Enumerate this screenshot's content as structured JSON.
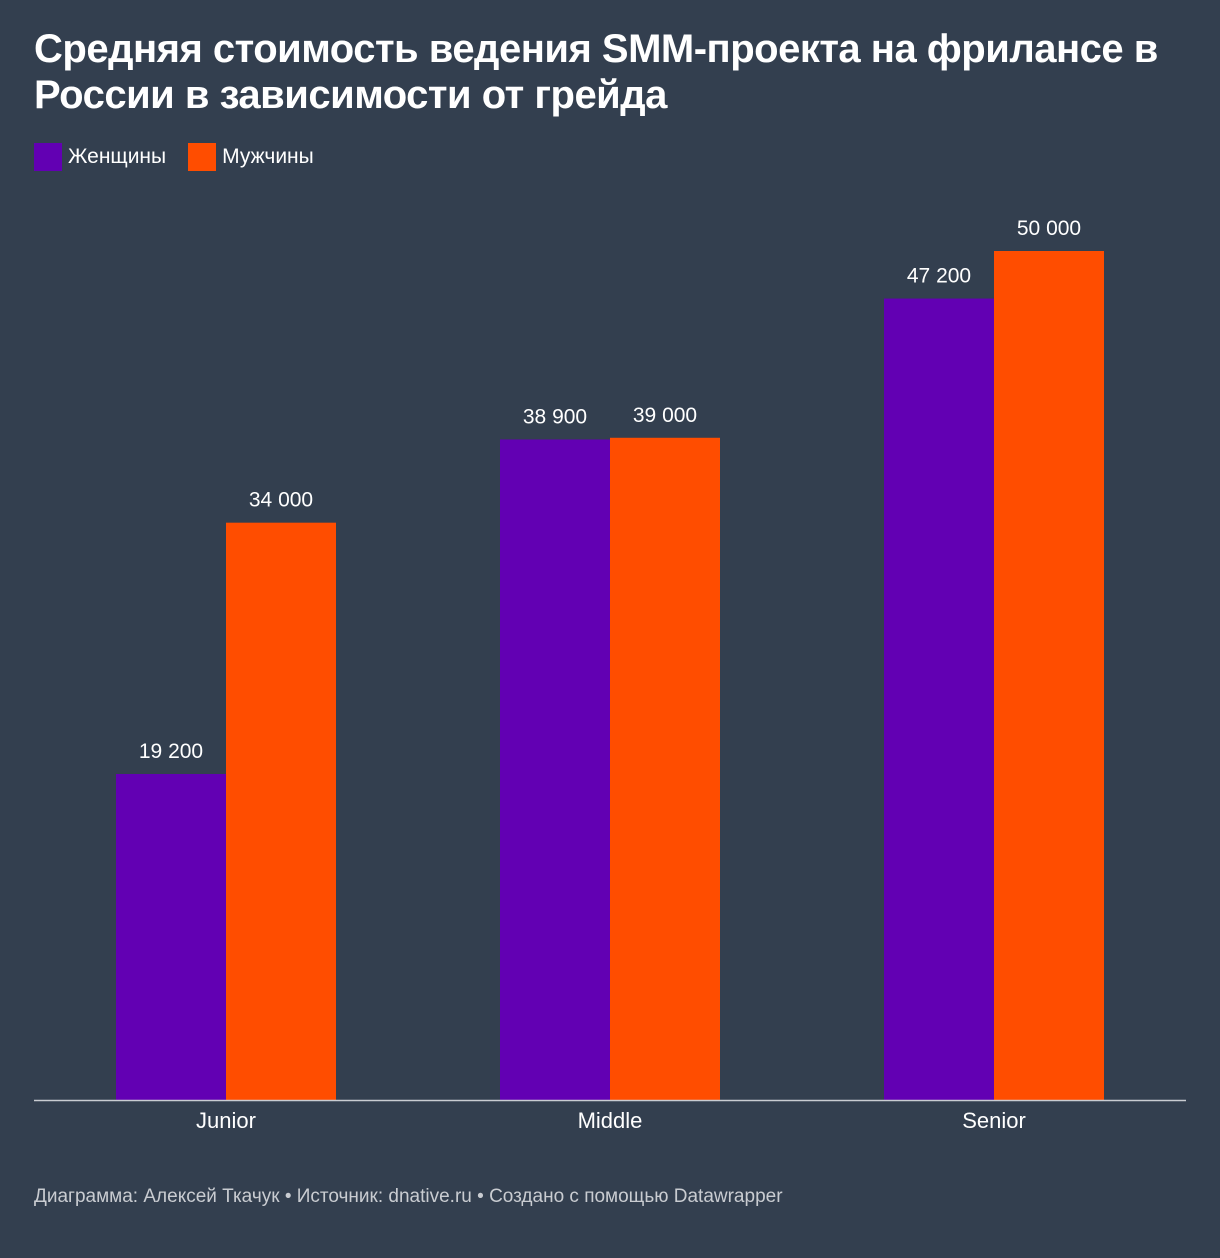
{
  "title": "Средняя стоимость ведения SMM-проекта на фрилансе в России в зависимости от грейда",
  "legend": [
    {
      "label": "Женщины",
      "color": "#6200b3"
    },
    {
      "label": "Мужчины",
      "color": "#ff4d00"
    }
  ],
  "footer": "Диаграмма: Алексей Ткачук • Источник: dnative.ru • Создано с помощью Datawrapper",
  "chart_data": {
    "type": "bar",
    "title": "Средняя стоимость ведения SMM-проекта на фрилансе в России в зависимости от грейда",
    "categories": [
      "Junior",
      "Middle",
      "Senior"
    ],
    "series": [
      {
        "name": "Женщины",
        "values": [
          19200,
          38900,
          47200
        ],
        "labels": [
          "19 200",
          "38 900",
          "47 200"
        ],
        "color": "#6200b3"
      },
      {
        "name": "Мужчины",
        "values": [
          34000,
          39000,
          50000
        ],
        "labels": [
          "34 000",
          "39 000",
          "50 000"
        ],
        "color": "#ff4d00"
      }
    ],
    "xlabel": "",
    "ylabel": "",
    "ylim": [
      0,
      50000
    ],
    "grid": false,
    "legend_position": "top-left"
  }
}
